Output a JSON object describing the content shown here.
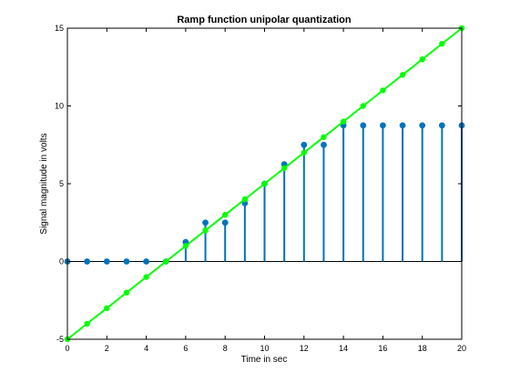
{
  "chart_data": {
    "type": "line",
    "title": "Ramp function unipolar quantization",
    "xlabel": "Time in sec",
    "ylabel": "Signal magnitude in volts",
    "xlim": [
      0,
      20
    ],
    "ylim": [
      -5,
      15
    ],
    "xticks": [
      "0",
      "2",
      "4",
      "6",
      "8",
      "10",
      "12",
      "14",
      "16",
      "18",
      "20"
    ],
    "yticks": [
      "-5",
      "0",
      "5",
      "10",
      "15"
    ],
    "grid": false,
    "series": [
      {
        "style": "stem",
        "color": "#0072bd",
        "x": [
          0,
          1,
          2,
          3,
          4,
          5,
          6,
          7,
          8,
          9,
          10,
          11,
          12,
          13,
          14,
          15,
          16,
          17,
          18,
          19,
          20
        ],
        "values": [
          0,
          0,
          0,
          0,
          0,
          0,
          1.25,
          2.5,
          2.5,
          3.75,
          5,
          6.25,
          7.5,
          7.5,
          8.75,
          8.75,
          8.75,
          8.75,
          8.75,
          8.75,
          8.75
        ]
      },
      {
        "style": "line-markers",
        "color": "#00ff00",
        "x": [
          0,
          1,
          2,
          3,
          4,
          5,
          6,
          7,
          8,
          9,
          10,
          11,
          12,
          13,
          14,
          15,
          16,
          17,
          18,
          19,
          20
        ],
        "values": [
          -5,
          -4,
          -3,
          -2,
          -1,
          0,
          1,
          2,
          3,
          4,
          5,
          6,
          7,
          8,
          9,
          10,
          11,
          12,
          13,
          14,
          15
        ]
      }
    ]
  }
}
